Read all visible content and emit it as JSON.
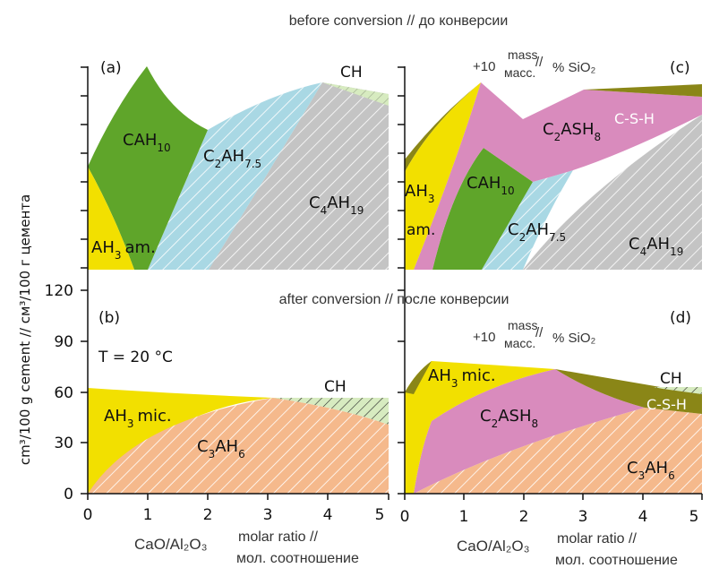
{
  "headers": {
    "top": "before conversion // до конверсии",
    "middle": "after conversion // после конверсии"
  },
  "y_axis_label": "cm³/100 g cement // см³/100 г цемента",
  "y_ticks": [
    "0",
    "30",
    "60",
    "90",
    "120"
  ],
  "x_ticks": [
    "0",
    "1",
    "2",
    "3",
    "4",
    "5"
  ],
  "x_axis_label": {
    "main": "CaO/Al₂O₃",
    "note_line1": "molar ratio //",
    "note_line2": "мол. соотношение"
  },
  "temperature": "T = 20 °C",
  "silica_note": {
    "prefix": "+10",
    "top": "mass",
    "slash": "//",
    "bottom": "масс.",
    "suffix": "% SiO₂"
  },
  "panels": {
    "a": {
      "tag": "(a)",
      "phases": [
        {
          "base": "CAH",
          "sub": "10"
        },
        {
          "base": "C",
          "sub": "2",
          "base2": "AH",
          "sub2": "7.5"
        },
        {
          "base": "C",
          "sub": "4",
          "base2": "AH",
          "sub2": "19"
        },
        {
          "base": "AH",
          "sub": "3",
          "tail": "am."
        },
        {
          "base": "CH"
        }
      ]
    },
    "b": {
      "tag": "(b)",
      "phases": [
        {
          "base": "AH",
          "sub": "3",
          "tail": "mic."
        },
        {
          "base": "C",
          "sub": "3",
          "base2": "AH",
          "sub2": "6"
        },
        {
          "base": "CH"
        }
      ]
    },
    "c": {
      "tag": "(c)",
      "phases": [
        {
          "base": "C-S-H"
        },
        {
          "base": "C",
          "sub": "2",
          "base2": "ASH",
          "sub2": "8"
        },
        {
          "base": "AH",
          "sub": "3"
        },
        {
          "base": "am."
        },
        {
          "base": "CAH",
          "sub": "10"
        },
        {
          "base": "C",
          "sub": "2",
          "base2": "AH",
          "sub2": "7.5"
        },
        {
          "base": "C",
          "sub": "4",
          "base2": "AH",
          "sub2": "19"
        }
      ]
    },
    "d": {
      "tag": "(d)",
      "phases": [
        {
          "base": "AH",
          "sub": "3",
          "tail": "mic."
        },
        {
          "base": "CH"
        },
        {
          "base": "C-S-H"
        },
        {
          "base": "C",
          "sub": "2",
          "base2": "ASH",
          "sub2": "8"
        },
        {
          "base": "C",
          "sub": "3",
          "base2": "AH",
          "sub2": "6"
        }
      ]
    }
  },
  "colors": {
    "AH3": "#f2e000",
    "CAH10": "#5fa52a",
    "C2AH75": "#a9d8e4",
    "C4AH19": "#c4c4c4",
    "CH": "#d7ebc0",
    "C3AH6": "#f5b98c",
    "C2ASH8": "#d98bbd",
    "CSH": "#8a8617"
  }
}
